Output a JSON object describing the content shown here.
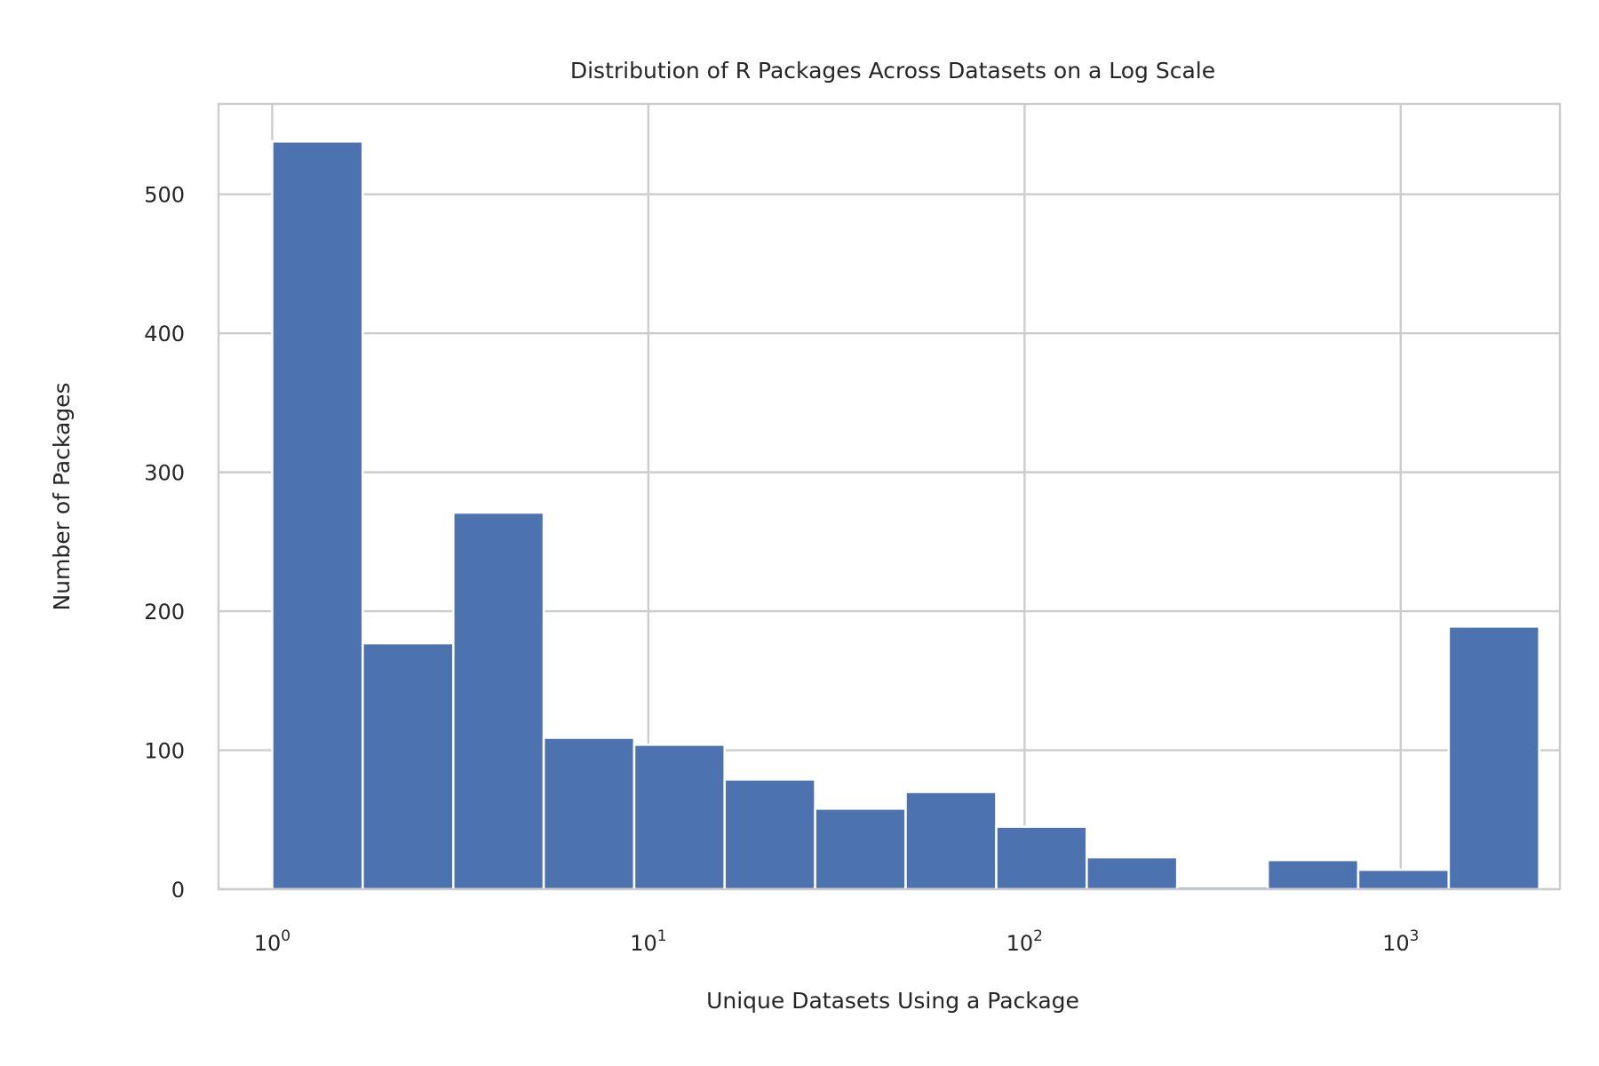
{
  "chart_data": {
    "type": "bar",
    "title": "Distribution of R Packages Across Datasets on a Log Scale",
    "xlabel": "Unique Datasets Using a Package",
    "ylabel": "Number of Packages",
    "x_scale": "log",
    "xlim": [
      0.72,
      2650
    ],
    "ylim": [
      0,
      565
    ],
    "grid": true,
    "bar_color": "#4c72b0",
    "bin_edges": [
      1,
      1.74,
      3.03,
      5.27,
      9.17,
      15.95,
      27.76,
      48.3,
      84.1,
      146.3,
      254.6,
      443.1,
      771.1,
      1342,
      2335
    ],
    "values": [
      538,
      177,
      271,
      109,
      104,
      79,
      58,
      70,
      45,
      23,
      2,
      21,
      14,
      189
    ],
    "x_ticks": [
      {
        "value": 1,
        "base": "10",
        "exp": "0"
      },
      {
        "value": 10,
        "base": "10",
        "exp": "1"
      },
      {
        "value": 100,
        "base": "10",
        "exp": "2"
      },
      {
        "value": 1000,
        "base": "10",
        "exp": "3"
      }
    ],
    "y_ticks": [
      {
        "value": 0,
        "label": "0"
      },
      {
        "value": 100,
        "label": "100"
      },
      {
        "value": 200,
        "label": "200"
      },
      {
        "value": 300,
        "label": "300"
      },
      {
        "value": 400,
        "label": "400"
      },
      {
        "value": 500,
        "label": "500"
      }
    ]
  }
}
